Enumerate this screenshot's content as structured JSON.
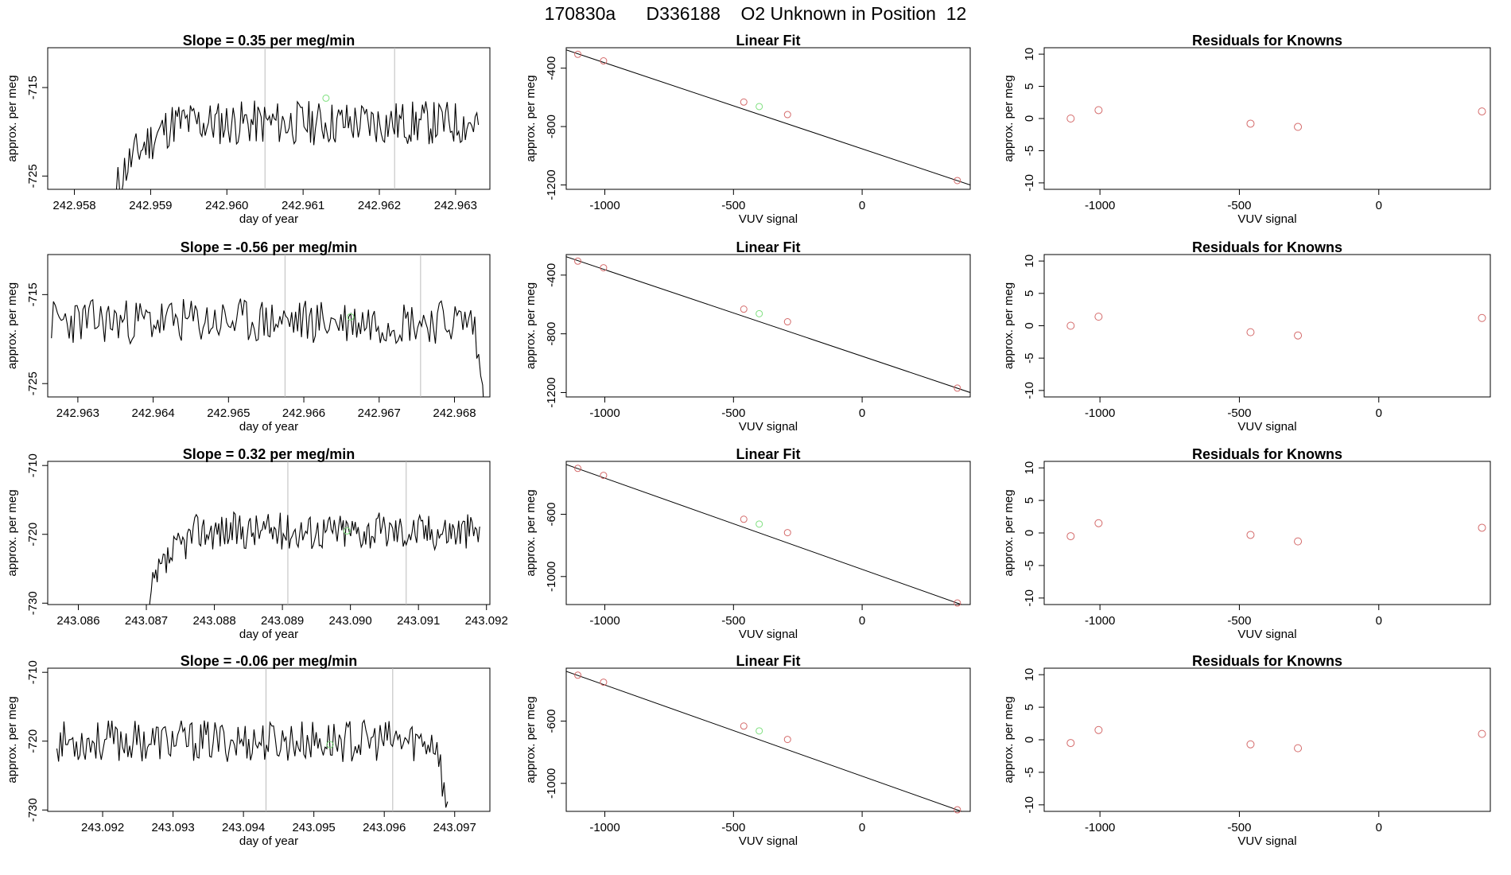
{
  "page_title": "170830a      D336188    O2 Unknown in Position  12",
  "colors": {
    "trace": "#000000",
    "frame": "#000000",
    "marker_line": "#bbbbbb",
    "standard_point": "#d46a6a",
    "unknown_point": "#7fe07f"
  },
  "chart_data": [
    {
      "panel": "timeseries-1",
      "type": "line",
      "title": "Slope =  0.35  per meg/min",
      "xlabel": "day of year",
      "ylabel": "approx. per meg",
      "xlim": [
        242.95765,
        242.96345
      ],
      "ylim": [
        -726.5,
        -710.5
      ],
      "xticks": [
        "242.958",
        "242.959",
        "242.960",
        "242.961",
        "242.962",
        "242.963"
      ],
      "xtick_values": [
        242.958,
        242.959,
        242.96,
        242.961,
        242.962,
        242.963
      ],
      "yticks": [
        "-725",
        "-715"
      ],
      "ytick_values": [
        -725,
        -715
      ],
      "markers": [
        242.9605,
        242.9622
      ],
      "unknown_point": [
        242.9613,
        -716.2
      ],
      "series": [
        {
          "trace": {
            "start": 242.95855,
            "end": 242.9633,
            "baseline": -719,
            "noise": 1.6,
            "ramp_from": -727.5,
            "ramp_end": 242.9593,
            "seed": 11,
            "tail": null
          }
        }
      ]
    },
    {
      "panel": "timeseries-2",
      "type": "line",
      "title": "Slope =  -0.56  per meg/min",
      "xlabel": "day of year",
      "ylabel": "approx. per meg",
      "xlim": [
        242.9626,
        242.96847
      ],
      "ylim": [
        -726.5,
        -710.5
      ],
      "xticks": [
        "242.963",
        "242.964",
        "242.965",
        "242.966",
        "242.967",
        "242.968"
      ],
      "xtick_values": [
        242.963,
        242.964,
        242.965,
        242.966,
        242.967,
        242.968
      ],
      "yticks": [
        "-725",
        "-715"
      ],
      "ytick_values": [
        -725,
        -715
      ],
      "markers": [
        242.96575,
        242.96755
      ],
      "unknown_point": [
        242.96662,
        -717.5
      ],
      "series": [
        {
          "trace": {
            "start": 242.96265,
            "end": 242.9684,
            "baseline": -718,
            "noise": 1.6,
            "ramp_from": null,
            "ramp_end": null,
            "seed": 23,
            "tail": {
              "start": 242.96825,
              "to": -727.5
            }
          }
        }
      ]
    },
    {
      "panel": "timeseries-3",
      "type": "line",
      "title": "Slope =  0.32  per meg/min",
      "xlabel": "day of year",
      "ylabel": "approx. per meg",
      "xlim": [
        243.08555,
        243.09205
      ],
      "ylim": [
        -730.2,
        -709.4
      ],
      "xticks": [
        "243.086",
        "243.087",
        "243.088",
        "243.089",
        "243.090",
        "243.091",
        "243.092"
      ],
      "xtick_values": [
        243.086,
        243.087,
        243.088,
        243.089,
        243.09,
        243.091,
        243.092
      ],
      "yticks": [
        "-730",
        "-720",
        "-710"
      ],
      "ytick_values": [
        -730,
        -720,
        -710
      ],
      "markers": [
        243.08908,
        243.09082
      ],
      "unknown_point": [
        243.08995,
        -719.5
      ],
      "series": [
        {
          "trace": {
            "start": 243.08705,
            "end": 243.0919,
            "baseline": -719.5,
            "noise": 1.7,
            "ramp_from": -731,
            "ramp_end": 243.08775,
            "seed": 37,
            "tail": null
          }
        }
      ]
    },
    {
      "panel": "timeseries-4",
      "type": "line",
      "title": "Slope =  -0.06  per meg/min",
      "xlabel": "day of year",
      "ylabel": "approx. per meg",
      "xlim": [
        243.09122,
        243.0975
      ],
      "ylim": [
        -730.2,
        -709.4
      ],
      "xticks": [
        "243.092",
        "243.093",
        "243.094",
        "243.095",
        "243.096",
        "243.097"
      ],
      "xtick_values": [
        243.092,
        243.093,
        243.094,
        243.095,
        243.096,
        243.097
      ],
      "yticks": [
        "-730",
        "-720",
        "-710"
      ],
      "ytick_values": [
        -730,
        -720,
        -710
      ],
      "markers": [
        243.09432,
        243.09612
      ],
      "unknown_point": [
        243.09523,
        -720.5
      ],
      "series": [
        {
          "trace": {
            "start": 243.09135,
            "end": 243.0969,
            "baseline": -720,
            "noise": 1.9,
            "ramp_from": null,
            "ramp_end": null,
            "seed": 53,
            "tail": {
              "start": 243.09675,
              "to": -731
            }
          }
        }
      ]
    },
    {
      "panel": "fit-1",
      "type": "scatter",
      "title": "Linear Fit",
      "xlabel": "VUV signal",
      "ylabel": "approx. per meg",
      "xlim": [
        -1150,
        420
      ],
      "ylim": [
        -1230,
        -260
      ],
      "xticks": [
        "-1000",
        "-500",
        "0"
      ],
      "xtick_values": [
        -1000,
        -500,
        0
      ],
      "yticks": [
        "-1200",
        "-800",
        "-400"
      ],
      "ytick_values": [
        -1200,
        -800,
        -400
      ],
      "standards": [
        [
          -1105,
          -305
        ],
        [
          -1005,
          -350
        ],
        [
          -460,
          -632
        ],
        [
          -290,
          -718
        ],
        [
          370,
          -1170
        ]
      ],
      "unknown": [
        [
          -400,
          -663
        ]
      ],
      "fit_line": [
        [
          -1150,
          -275
        ],
        [
          420,
          -1200
        ]
      ]
    },
    {
      "panel": "fit-2",
      "type": "scatter",
      "title": "Linear Fit",
      "xlabel": "VUV signal",
      "ylabel": "approx. per meg",
      "xlim": [
        -1150,
        420
      ],
      "ylim": [
        -1230,
        -260
      ],
      "xticks": [
        "-1000",
        "-500",
        "0"
      ],
      "xtick_values": [
        -1000,
        -500,
        0
      ],
      "yticks": [
        "-1200",
        "-800",
        "-400"
      ],
      "ytick_values": [
        -1200,
        -800,
        -400
      ],
      "standards": [
        [
          -1105,
          -305
        ],
        [
          -1005,
          -350
        ],
        [
          -460,
          -632
        ],
        [
          -290,
          -718
        ],
        [
          370,
          -1170
        ]
      ],
      "unknown": [
        [
          -400,
          -663
        ]
      ],
      "fit_line": [
        [
          -1150,
          -275
        ],
        [
          420,
          -1200
        ]
      ]
    },
    {
      "panel": "fit-3",
      "type": "scatter",
      "title": "Linear Fit",
      "xlabel": "VUV signal",
      "ylabel": "approx. per meg",
      "xlim": [
        -1150,
        420
      ],
      "ylim": [
        -1180,
        -260
      ],
      "xticks": [
        "-1000",
        "-500",
        "0"
      ],
      "xtick_values": [
        -1000,
        -500,
        0
      ],
      "yticks": [
        "-1000",
        "-600"
      ],
      "ytick_values": [
        -1000,
        -600
      ],
      "standards": [
        [
          -1105,
          -305
        ],
        [
          -1005,
          -350
        ],
        [
          -460,
          -632
        ],
        [
          -290,
          -718
        ],
        [
          370,
          -1170
        ]
      ],
      "unknown": [
        [
          -400,
          -663
        ]
      ],
      "fit_line": [
        [
          -1150,
          -280
        ],
        [
          420,
          -1200
        ]
      ]
    },
    {
      "panel": "fit-4",
      "type": "scatter",
      "title": "Linear Fit",
      "xlabel": "VUV signal",
      "ylabel": "approx. per meg",
      "xlim": [
        -1150,
        420
      ],
      "ylim": [
        -1180,
        -260
      ],
      "xticks": [
        "-1000",
        "-500",
        "0"
      ],
      "xtick_values": [
        -1000,
        -500,
        0
      ],
      "yticks": [
        "-1000",
        "-600"
      ],
      "ytick_values": [
        -1000,
        -600
      ],
      "standards": [
        [
          -1105,
          -305
        ],
        [
          -1005,
          -350
        ],
        [
          -460,
          -632
        ],
        [
          -290,
          -718
        ],
        [
          370,
          -1170
        ]
      ],
      "unknown": [
        [
          -400,
          -663
        ]
      ],
      "fit_line": [
        [
          -1150,
          -280
        ],
        [
          420,
          -1200
        ]
      ]
    },
    {
      "panel": "residuals-1",
      "type": "scatter",
      "title": "Residuals for Knowns",
      "xlabel": "VUV signal",
      "ylabel": "approx. per meg",
      "xlim": [
        -1200,
        400
      ],
      "ylim": [
        -11,
        11
      ],
      "xticks": [
        "-1000",
        "-500",
        "0"
      ],
      "xtick_values": [
        -1000,
        -500,
        0
      ],
      "yticks": [
        "-10",
        "-5",
        "0",
        "5",
        "10"
      ],
      "ytick_values": [
        -10,
        -5,
        0,
        5,
        10
      ],
      "points": [
        [
          -1105,
          0.0
        ],
        [
          -1005,
          1.3
        ],
        [
          -460,
          -0.8
        ],
        [
          -290,
          -1.3
        ],
        [
          370,
          1.1
        ]
      ]
    },
    {
      "panel": "residuals-2",
      "type": "scatter",
      "title": "Residuals for Knowns",
      "xlabel": "VUV signal",
      "ylabel": "approx. per meg",
      "xlim": [
        -1200,
        400
      ],
      "ylim": [
        -11,
        11
      ],
      "xticks": [
        "-1000",
        "-500",
        "0"
      ],
      "xtick_values": [
        -1000,
        -500,
        0
      ],
      "yticks": [
        "-10",
        "-5",
        "0",
        "5",
        "10"
      ],
      "ytick_values": [
        -10,
        -5,
        0,
        5,
        10
      ],
      "points": [
        [
          -1105,
          0.0
        ],
        [
          -1005,
          1.4
        ],
        [
          -460,
          -1.0
        ],
        [
          -290,
          -1.5
        ],
        [
          370,
          1.2
        ]
      ]
    },
    {
      "panel": "residuals-3",
      "type": "scatter",
      "title": "Residuals for Knowns",
      "xlabel": "VUV signal",
      "ylabel": "approx. per meg",
      "xlim": [
        -1200,
        400
      ],
      "ylim": [
        -11,
        11
      ],
      "xticks": [
        "-1000",
        "-500",
        "0"
      ],
      "xtick_values": [
        -1000,
        -500,
        0
      ],
      "yticks": [
        "-10",
        "-5",
        "0",
        "5",
        "10"
      ],
      "ytick_values": [
        -10,
        -5,
        0,
        5,
        10
      ],
      "points": [
        [
          -1105,
          -0.5
        ],
        [
          -1005,
          1.5
        ],
        [
          -460,
          -0.3
        ],
        [
          -290,
          -1.3
        ],
        [
          370,
          0.8
        ]
      ]
    },
    {
      "panel": "residuals-4",
      "type": "scatter",
      "title": "Residuals for Knowns",
      "xlabel": "VUV signal",
      "ylabel": "approx. per meg",
      "xlim": [
        -1200,
        400
      ],
      "ylim": [
        -11,
        11
      ],
      "xticks": [
        "-1000",
        "-500",
        "0"
      ],
      "xtick_values": [
        -1000,
        -500,
        0
      ],
      "yticks": [
        "-10",
        "-5",
        "0",
        "5",
        "10"
      ],
      "ytick_values": [
        -10,
        -5,
        0,
        5,
        10
      ],
      "points": [
        [
          -1105,
          -0.5
        ],
        [
          -1005,
          1.5
        ],
        [
          -460,
          -0.7
        ],
        [
          -290,
          -1.3
        ],
        [
          370,
          0.9
        ]
      ]
    }
  ]
}
